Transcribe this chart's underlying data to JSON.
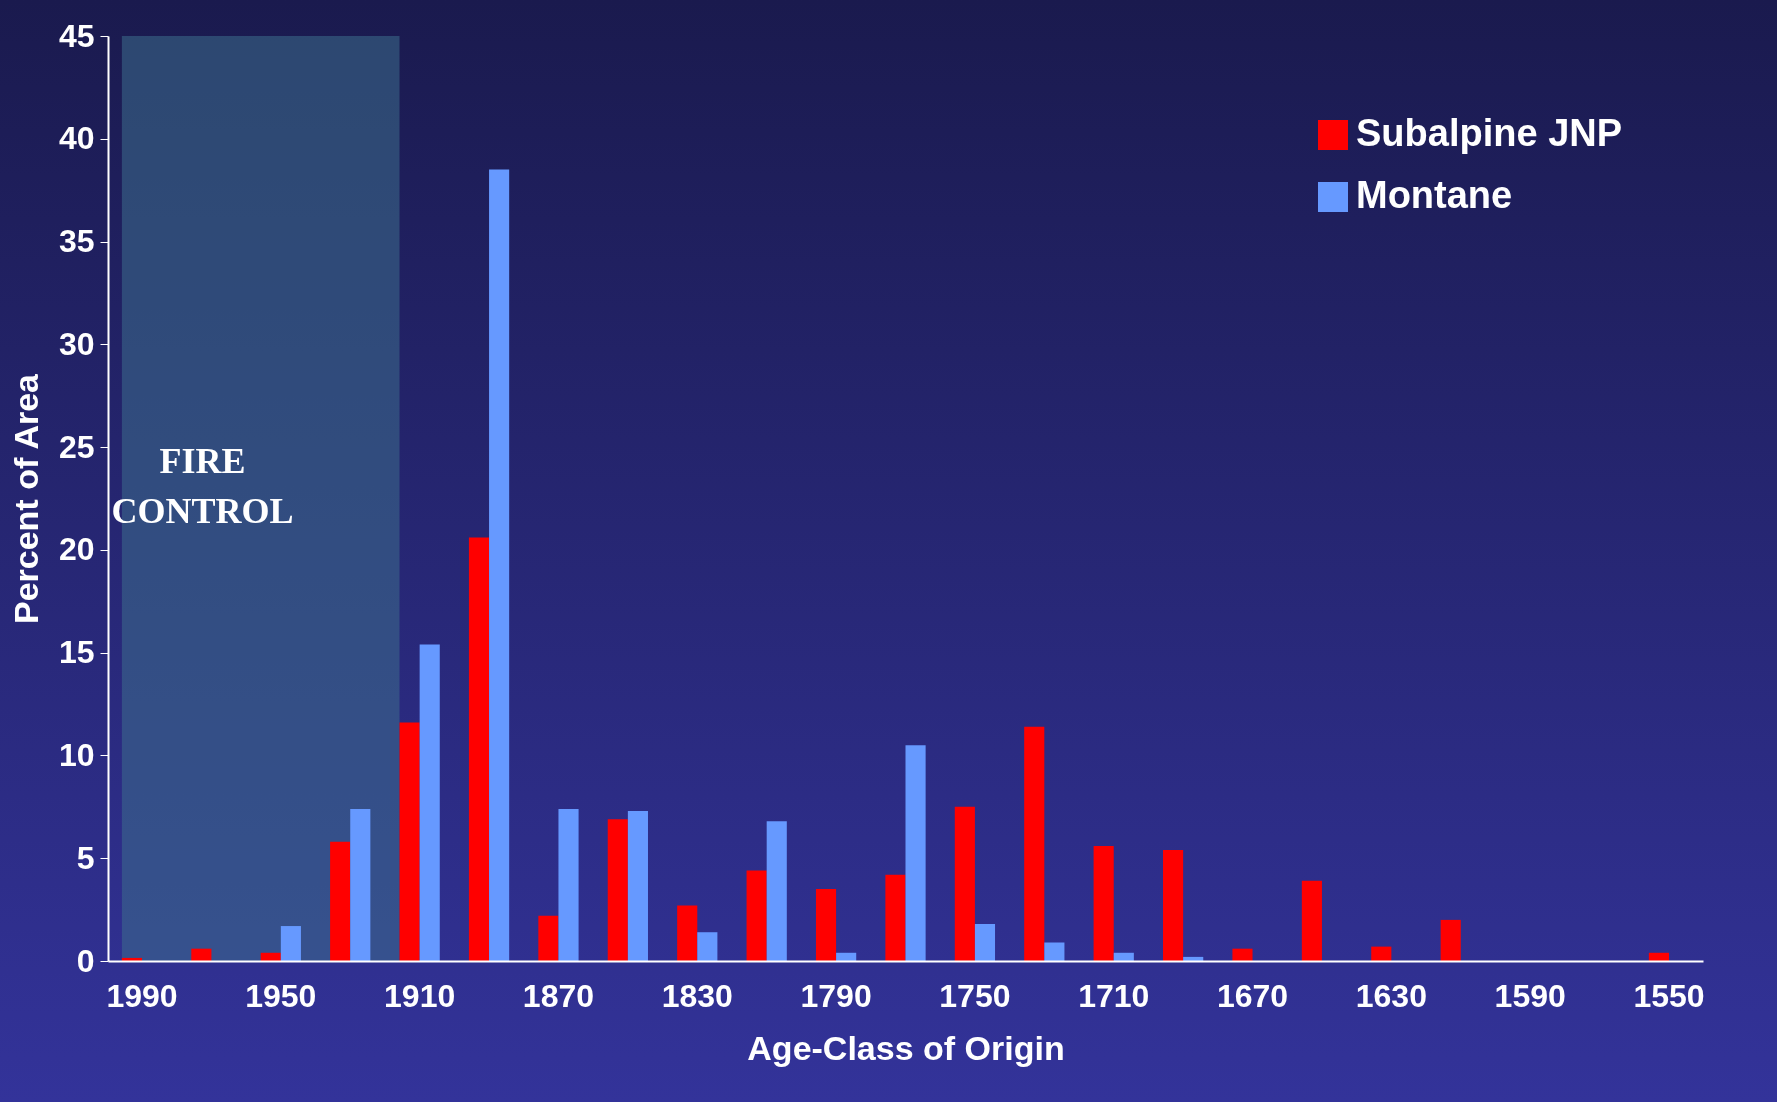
{
  "chart_data": {
    "type": "bar",
    "xlabel": "Age-Class of Origin",
    "ylabel": "Percent of Area",
    "categories": [
      "1990",
      null,
      "1950",
      null,
      "1910",
      null,
      "1870",
      null,
      "1830",
      null,
      "1790",
      null,
      "1750",
      null,
      "1710",
      null,
      "1670",
      null,
      "1630",
      null,
      "1590",
      null,
      "1550"
    ],
    "series": [
      {
        "name": "Subalpine JNP",
        "color": "#ff0000",
        "values": [
          0.15,
          0.6,
          0.4,
          5.8,
          11.6,
          20.6,
          2.2,
          6.9,
          2.7,
          4.4,
          3.5,
          4.2,
          7.5,
          11.4,
          5.6,
          5.4,
          0.6,
          3.9,
          0.7,
          2.0,
          0,
          0,
          0.4
        ]
      },
      {
        "name": "Montane",
        "color": "#6699ff",
        "values": [
          0,
          0,
          1.7,
          7.4,
          15.4,
          38.5,
          7.4,
          7.3,
          1.4,
          6.8,
          0.4,
          10.5,
          1.8,
          0.9,
          0.4,
          0.2,
          0,
          0,
          0,
          0,
          0,
          0,
          0
        ]
      }
    ],
    "ylim": [
      0,
      45
    ],
    "yticks": [
      0,
      5,
      10,
      15,
      20,
      25,
      30,
      35,
      40,
      45
    ],
    "grid": false,
    "legend": "top right",
    "bands": [
      {
        "axis": "x",
        "from": "1990",
        "to": "1910",
        "label": "FIRE CONTROL",
        "color": "#3d6e8c"
      }
    ]
  }
}
